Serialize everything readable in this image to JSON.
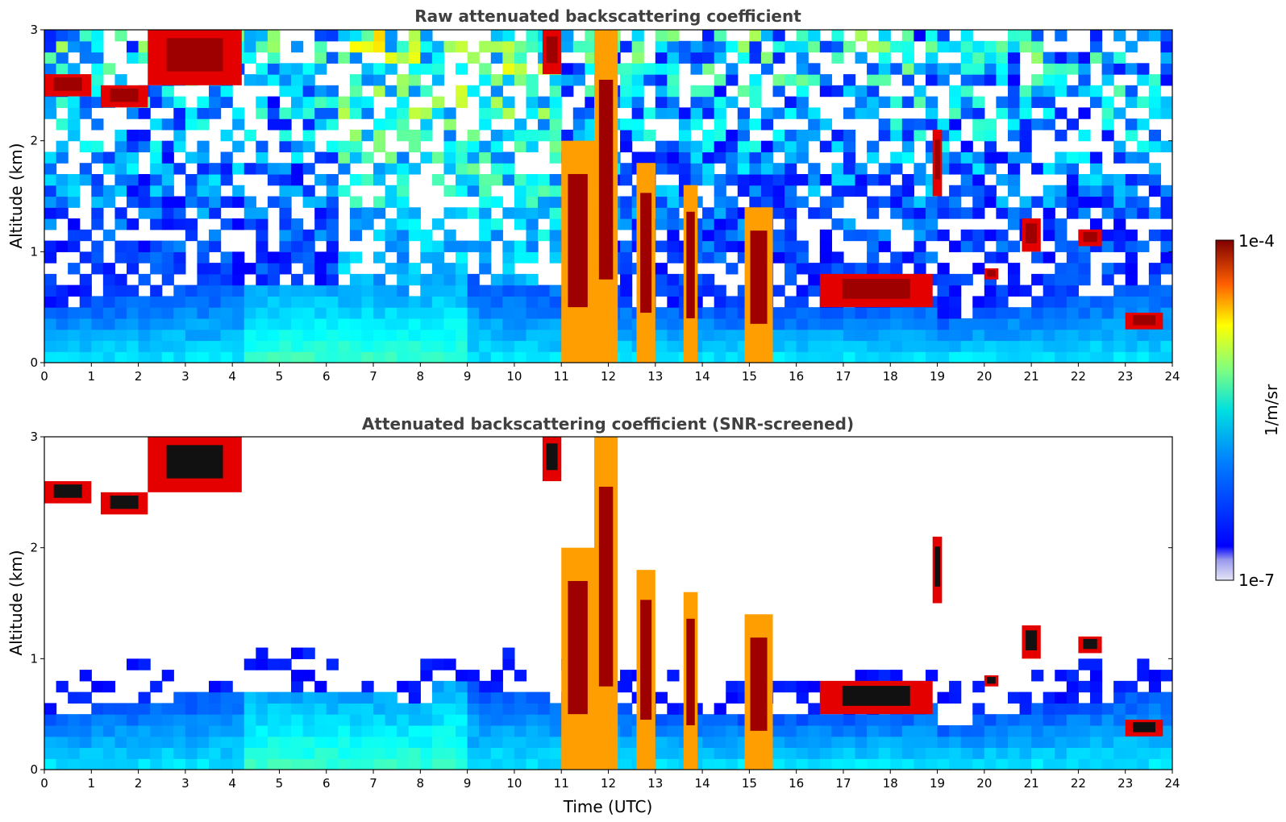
{
  "chart_data": [
    {
      "type": "heatmap",
      "title": "Raw attenuated backscattering coefficient",
      "xlabel": "",
      "ylabel": "Altitude (km)",
      "xlim": [
        0,
        24
      ],
      "ylim": [
        0,
        3
      ],
      "x_ticks": [
        "0",
        "1",
        "2",
        "3",
        "4",
        "5",
        "6",
        "7",
        "8",
        "9",
        "10",
        "11",
        "12",
        "13",
        "14",
        "15",
        "16",
        "17",
        "18",
        "19",
        "20",
        "21",
        "22",
        "23",
        "24"
      ],
      "y_ticks": [
        "0",
        "1",
        "2",
        "3"
      ],
      "grid": false,
      "screened": false,
      "boundary_layer_top_km": 0.55,
      "clouds": [
        {
          "t": [
            0.0,
            1.0
          ],
          "z": [
            2.4,
            2.6
          ]
        },
        {
          "t": [
            1.2,
            2.2
          ],
          "z": [
            2.3,
            2.5
          ]
        },
        {
          "t": [
            2.2,
            4.2
          ],
          "z": [
            2.5,
            3.0
          ]
        },
        {
          "t": [
            10.6,
            11.0
          ],
          "z": [
            2.6,
            3.0
          ]
        },
        {
          "t": [
            11.0,
            11.7
          ],
          "z": [
            0.0,
            2.0
          ]
        },
        {
          "t": [
            11.7,
            12.2
          ],
          "z": [
            0.0,
            3.0
          ]
        },
        {
          "t": [
            12.6,
            13.0
          ],
          "z": [
            0.0,
            1.8
          ]
        },
        {
          "t": [
            13.6,
            13.9
          ],
          "z": [
            0.0,
            1.6
          ]
        },
        {
          "t": [
            14.9,
            15.5
          ],
          "z": [
            0.0,
            1.4
          ]
        },
        {
          "t": [
            16.5,
            18.9
          ],
          "z": [
            0.5,
            0.8
          ]
        },
        {
          "t": [
            18.9,
            19.1
          ],
          "z": [
            1.5,
            2.1
          ]
        },
        {
          "t": [
            20.0,
            20.3
          ],
          "z": [
            0.75,
            0.85
          ]
        },
        {
          "t": [
            20.8,
            21.2
          ],
          "z": [
            1.0,
            1.3
          ]
        },
        {
          "t": [
            22.0,
            22.5
          ],
          "z": [
            1.05,
            1.2
          ]
        },
        {
          "t": [
            23.0,
            23.8
          ],
          "z": [
            0.3,
            0.45
          ]
        }
      ]
    },
    {
      "type": "heatmap",
      "title": "Attenuated backscattering coefficient (SNR-screened)",
      "xlabel": "Time (UTC)",
      "ylabel": "Altitude (km)",
      "xlim": [
        0,
        24
      ],
      "ylim": [
        0,
        3
      ],
      "x_ticks": [
        "0",
        "1",
        "2",
        "3",
        "4",
        "5",
        "6",
        "7",
        "8",
        "9",
        "10",
        "11",
        "12",
        "13",
        "14",
        "15",
        "16",
        "17",
        "18",
        "19",
        "20",
        "21",
        "22",
        "23",
        "24"
      ],
      "y_ticks": [
        "0",
        "1",
        "2",
        "3"
      ],
      "grid": false,
      "screened": true,
      "boundary_layer_top_km": 0.55,
      "clouds": [
        {
          "t": [
            0.0,
            1.0
          ],
          "z": [
            2.4,
            2.6
          ]
        },
        {
          "t": [
            1.2,
            2.2
          ],
          "z": [
            2.3,
            2.5
          ]
        },
        {
          "t": [
            2.2,
            4.2
          ],
          "z": [
            2.5,
            3.0
          ]
        },
        {
          "t": [
            10.6,
            11.0
          ],
          "z": [
            2.6,
            3.0
          ]
        },
        {
          "t": [
            11.0,
            11.7
          ],
          "z": [
            0.0,
            2.0
          ]
        },
        {
          "t": [
            11.7,
            12.2
          ],
          "z": [
            0.0,
            3.0
          ]
        },
        {
          "t": [
            12.6,
            13.0
          ],
          "z": [
            0.0,
            1.8
          ]
        },
        {
          "t": [
            13.6,
            13.9
          ],
          "z": [
            0.0,
            1.6
          ]
        },
        {
          "t": [
            14.9,
            15.5
          ],
          "z": [
            0.0,
            1.4
          ]
        },
        {
          "t": [
            16.5,
            18.9
          ],
          "z": [
            0.5,
            0.8
          ]
        },
        {
          "t": [
            18.9,
            19.1
          ],
          "z": [
            1.5,
            2.1
          ]
        },
        {
          "t": [
            20.0,
            20.3
          ],
          "z": [
            0.75,
            0.85
          ]
        },
        {
          "t": [
            20.8,
            21.2
          ],
          "z": [
            1.0,
            1.3
          ]
        },
        {
          "t": [
            22.0,
            22.5
          ],
          "z": [
            1.05,
            1.2
          ]
        },
        {
          "t": [
            23.0,
            23.8
          ],
          "z": [
            0.3,
            0.45
          ]
        }
      ]
    }
  ],
  "colorbar": {
    "label": "1/m/sr",
    "max_label": "1e-4",
    "min_label": "1e-7",
    "colormap": "jet",
    "scale": "log"
  }
}
